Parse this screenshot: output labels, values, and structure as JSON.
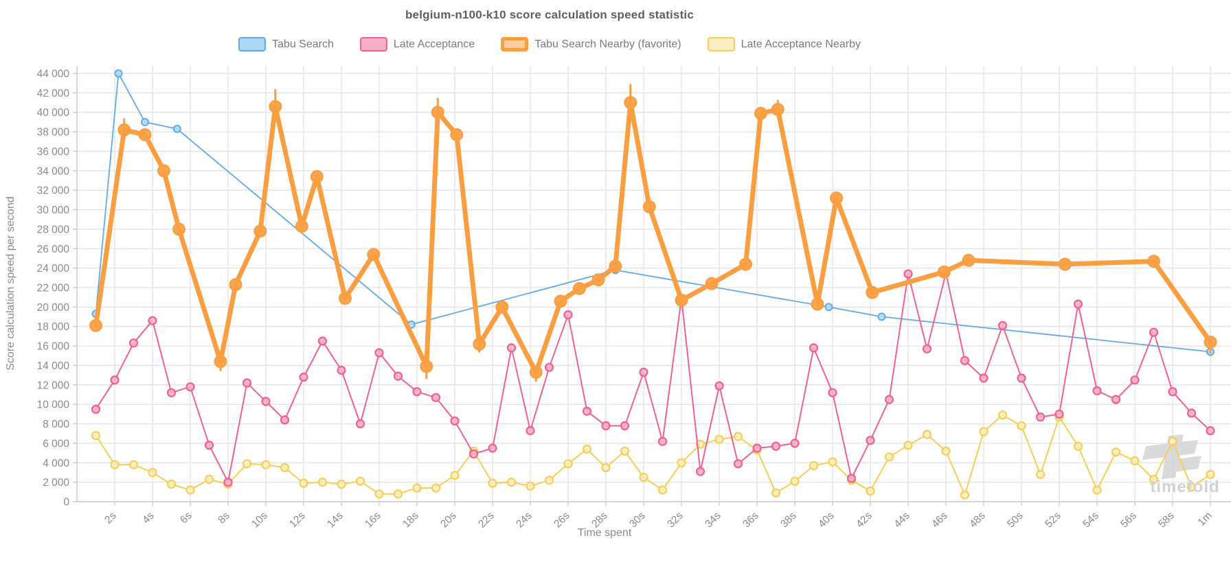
{
  "title": "belgium-n100-k10 score calculation speed statistic",
  "watermark": {
    "text": "timefold"
  },
  "chart_data": {
    "type": "line",
    "title": "belgium-n100-k10 score calculation speed statistic",
    "xlabel": "Time spent",
    "ylabel": "Score calculation speed per second",
    "xlim": [
      0,
      61
    ],
    "ylim": [
      0,
      44000
    ],
    "grid": true,
    "legend_position": "top",
    "x_ticks": [
      {
        "t": 2,
        "label": "2s"
      },
      {
        "t": 4,
        "label": "4s"
      },
      {
        "t": 6,
        "label": "6s"
      },
      {
        "t": 8,
        "label": "8s"
      },
      {
        "t": 10,
        "label": "10s"
      },
      {
        "t": 12,
        "label": "12s"
      },
      {
        "t": 14,
        "label": "14s"
      },
      {
        "t": 16,
        "label": "16s"
      },
      {
        "t": 18,
        "label": "18s"
      },
      {
        "t": 20,
        "label": "20s"
      },
      {
        "t": 22,
        "label": "22s"
      },
      {
        "t": 24,
        "label": "24s"
      },
      {
        "t": 26,
        "label": "26s"
      },
      {
        "t": 28,
        "label": "28s"
      },
      {
        "t": 30,
        "label": "30s"
      },
      {
        "t": 32,
        "label": "32s"
      },
      {
        "t": 34,
        "label": "34s"
      },
      {
        "t": 36,
        "label": "36s"
      },
      {
        "t": 38,
        "label": "38s"
      },
      {
        "t": 40,
        "label": "40s"
      },
      {
        "t": 42,
        "label": "42s"
      },
      {
        "t": 44,
        "label": "44s"
      },
      {
        "t": 46,
        "label": "46s"
      },
      {
        "t": 48,
        "label": "48s"
      },
      {
        "t": 50,
        "label": "50s"
      },
      {
        "t": 52,
        "label": "52s"
      },
      {
        "t": 54,
        "label": "54s"
      },
      {
        "t": 56,
        "label": "56s"
      },
      {
        "t": 58,
        "label": "58s"
      },
      {
        "t": 60,
        "label": "1m"
      }
    ],
    "y_ticks": [
      {
        "v": 0,
        "label": "0"
      },
      {
        "v": 2000,
        "label": "2 000"
      },
      {
        "v": 4000,
        "label": "4 000"
      },
      {
        "v": 6000,
        "label": "6 000"
      },
      {
        "v": 8000,
        "label": "8 000"
      },
      {
        "v": 10000,
        "label": "10 000"
      },
      {
        "v": 12000,
        "label": "12 000"
      },
      {
        "v": 14000,
        "label": "14 000"
      },
      {
        "v": 16000,
        "label": "16 000"
      },
      {
        "v": 18000,
        "label": "18 000"
      },
      {
        "v": 20000,
        "label": "20 000"
      },
      {
        "v": 22000,
        "label": "22 000"
      },
      {
        "v": 24000,
        "label": "24 000"
      },
      {
        "v": 26000,
        "label": "26 000"
      },
      {
        "v": 28000,
        "label": "28 000"
      },
      {
        "v": 30000,
        "label": "30 000"
      },
      {
        "v": 32000,
        "label": "32 000"
      },
      {
        "v": 34000,
        "label": "34 000"
      },
      {
        "v": 36000,
        "label": "36 000"
      },
      {
        "v": 38000,
        "label": "38 000"
      },
      {
        "v": 40000,
        "label": "40 000"
      },
      {
        "v": 42000,
        "label": "42 000"
      },
      {
        "v": 44000,
        "label": "44 000"
      }
    ],
    "series": [
      {
        "name": "Tabu Search",
        "color": "#5fabe9",
        "marker_fill": "#b3dbf7",
        "line_width": 1.8,
        "marker_r": 5,
        "marker_stroke": 2,
        "points": [
          [
            1,
            19300
          ],
          [
            2.2,
            44000
          ],
          [
            3.6,
            39000
          ],
          [
            5.3,
            38300
          ],
          [
            17.7,
            18200
          ],
          [
            28.5,
            23800
          ],
          [
            39.8,
            20000
          ],
          [
            42.6,
            19000
          ],
          [
            60,
            15400
          ]
        ],
        "tips": []
      },
      {
        "name": "Late Acceptance Nearby",
        "color": "#f7ce55",
        "marker_fill": "#fbeec2",
        "line_width": 2,
        "marker_r": 5.5,
        "marker_stroke": 2.2,
        "points": [
          [
            1,
            6800
          ],
          [
            2,
            3800
          ],
          [
            3,
            3800
          ],
          [
            4,
            3000
          ],
          [
            5,
            1800
          ],
          [
            6,
            1200
          ],
          [
            7,
            2300
          ],
          [
            8,
            1800
          ],
          [
            9,
            3900
          ],
          [
            10,
            3800
          ],
          [
            11,
            3500
          ],
          [
            12,
            1900
          ],
          [
            13,
            2000
          ],
          [
            14,
            1800
          ],
          [
            15,
            2100
          ],
          [
            16,
            800
          ],
          [
            17,
            800
          ],
          [
            18,
            1400
          ],
          [
            19,
            1400
          ],
          [
            20,
            2700
          ],
          [
            21,
            5200
          ],
          [
            22,
            1900
          ],
          [
            23,
            2000
          ],
          [
            24,
            1600
          ],
          [
            25,
            2200
          ],
          [
            26,
            3900
          ],
          [
            27,
            5400
          ],
          [
            28,
            3500
          ],
          [
            29,
            5200
          ],
          [
            30,
            2500
          ],
          [
            31,
            1200
          ],
          [
            32,
            4000
          ],
          [
            33,
            5900
          ],
          [
            34,
            6400
          ],
          [
            35,
            6700
          ],
          [
            36,
            5300
          ],
          [
            37,
            900
          ],
          [
            38,
            2100
          ],
          [
            39,
            3700
          ],
          [
            40,
            4100
          ],
          [
            41,
            2200
          ],
          [
            42,
            1100
          ],
          [
            43,
            4600
          ],
          [
            44,
            5800
          ],
          [
            45,
            6900
          ],
          [
            46,
            5200
          ],
          [
            47,
            700
          ],
          [
            48,
            7200
          ],
          [
            49,
            8900
          ],
          [
            50,
            7800
          ],
          [
            51,
            2800
          ],
          [
            52,
            8700
          ],
          [
            53,
            5700
          ],
          [
            54,
            1200
          ],
          [
            55,
            5100
          ],
          [
            56,
            4200
          ],
          [
            57,
            2300
          ],
          [
            58,
            6200
          ],
          [
            59,
            1500
          ],
          [
            60,
            2800
          ]
        ],
        "tips": []
      },
      {
        "name": "Late Acceptance",
        "color": "#ee6191",
        "marker_fill": "#f7b0c8",
        "line_width": 2,
        "marker_r": 5.5,
        "marker_stroke": 2.2,
        "points": [
          [
            1,
            9500
          ],
          [
            2,
            12500
          ],
          [
            3,
            16300
          ],
          [
            4,
            18600
          ],
          [
            5,
            11200
          ],
          [
            6,
            11800
          ],
          [
            7,
            5800
          ],
          [
            8,
            2000
          ],
          [
            9,
            12200
          ],
          [
            10,
            10300
          ],
          [
            11,
            8400
          ],
          [
            12,
            12800
          ],
          [
            13,
            16500
          ],
          [
            14,
            13500
          ],
          [
            15,
            8000
          ],
          [
            16,
            15300
          ],
          [
            17,
            12900
          ],
          [
            18,
            11300
          ],
          [
            19,
            10700
          ],
          [
            20,
            8300
          ],
          [
            21,
            4900
          ],
          [
            22,
            5500
          ],
          [
            23,
            15800
          ],
          [
            24,
            7300
          ],
          [
            25,
            13800
          ],
          [
            26,
            19200
          ],
          [
            27,
            9300
          ],
          [
            28,
            7800
          ],
          [
            29,
            7800
          ],
          [
            30,
            13300
          ],
          [
            31,
            6200
          ],
          [
            32,
            20900
          ],
          [
            33,
            3100
          ],
          [
            34,
            11900
          ],
          [
            35,
            3900
          ],
          [
            36,
            5500
          ],
          [
            37,
            5700
          ],
          [
            38,
            6000
          ],
          [
            39,
            15800
          ],
          [
            40,
            11200
          ],
          [
            41,
            2400
          ],
          [
            42,
            6300
          ],
          [
            43,
            10500
          ],
          [
            44,
            23400
          ],
          [
            45,
            15700
          ],
          [
            46,
            23500
          ],
          [
            47,
            14500
          ],
          [
            48,
            12700
          ],
          [
            49,
            18100
          ],
          [
            50,
            12700
          ],
          [
            51,
            8700
          ],
          [
            52,
            9000
          ],
          [
            53,
            20300
          ],
          [
            54,
            11400
          ],
          [
            55,
            10500
          ],
          [
            56,
            12500
          ],
          [
            57,
            17400
          ],
          [
            58,
            11300
          ],
          [
            59,
            9100
          ],
          [
            60,
            7300
          ]
        ],
        "tips": []
      },
      {
        "name": "Tabu Search Nearby (favorite)",
        "color": "#fa9e42",
        "marker_fill": "#fa9e42",
        "line_width": 7,
        "marker_r": 8,
        "marker_stroke": 3,
        "points": [
          [
            1,
            18100
          ],
          [
            2.5,
            38200
          ],
          [
            3.6,
            37700
          ],
          [
            4.6,
            34000
          ],
          [
            5.4,
            28000
          ],
          [
            7.6,
            14400
          ],
          [
            8.4,
            22300
          ],
          [
            9.7,
            27800
          ],
          [
            10.5,
            40600
          ],
          [
            11.9,
            28300
          ],
          [
            12.7,
            33400
          ],
          [
            14.2,
            20900
          ],
          [
            15.7,
            25400
          ],
          [
            18.5,
            13900
          ],
          [
            19.1,
            40000
          ],
          [
            20.1,
            37700
          ],
          [
            21.3,
            16200
          ],
          [
            22.5,
            20000
          ],
          [
            24.3,
            13300
          ],
          [
            25.6,
            20600
          ],
          [
            26.6,
            21900
          ],
          [
            27.6,
            22800
          ],
          [
            28.5,
            24200
          ],
          [
            29.3,
            41000
          ],
          [
            30.3,
            30300
          ],
          [
            32,
            20700
          ],
          [
            33.6,
            22400
          ],
          [
            35.4,
            24400
          ],
          [
            36.2,
            39900
          ],
          [
            37.1,
            40300
          ],
          [
            39.2,
            20300
          ],
          [
            40.2,
            31200
          ],
          [
            42.1,
            21500
          ],
          [
            45.9,
            23600
          ],
          [
            47.2,
            24800
          ],
          [
            52.3,
            24400
          ],
          [
            57,
            24700
          ],
          [
            60,
            16400
          ]
        ],
        "tips": [
          [
            2.5,
            1100
          ],
          [
            7.6,
            -900
          ],
          [
            10.5,
            1700
          ],
          [
            18.5,
            -1200
          ],
          [
            19.1,
            1400
          ],
          [
            21.3,
            -800
          ],
          [
            24.3,
            -900
          ],
          [
            29.3,
            1800
          ],
          [
            37.1,
            900
          ],
          [
            60,
            -1100
          ]
        ]
      }
    ],
    "legend_order": [
      "Tabu Search",
      "Late Acceptance",
      "Tabu Search Nearby (favorite)",
      "Late Acceptance Nearby"
    ],
    "legend_swatches": {
      "Tabu Search": {
        "fill": "#aed7f6",
        "border": "#5fabe9",
        "border_width": 2.5
      },
      "Late Acceptance": {
        "fill": "#f7b0c8",
        "border": "#ee6191",
        "border_width": 2.5
      },
      "Tabu Search Nearby (favorite)": {
        "fill": "#fbcfa0",
        "border": "#fa9e42",
        "border_width": 5
      },
      "Late Acceptance Nearby": {
        "fill": "#fbeec2",
        "border": "#f7ce55",
        "border_width": 2.5
      }
    },
    "colors": {
      "grid": "#e3e3e3",
      "axis": "#c9c9c9",
      "tick_text": "#8a8a8a",
      "title_text": "#5f5f5f",
      "watermark": "#d2d2d2"
    }
  }
}
